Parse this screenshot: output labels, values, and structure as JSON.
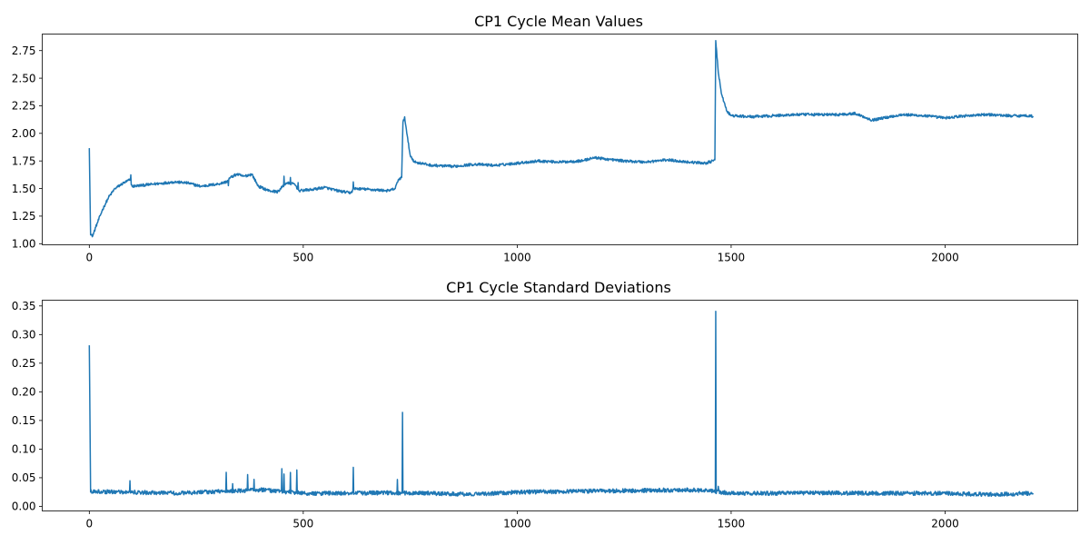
{
  "colors": {
    "line": "#1f77b4",
    "background": "#ffffff",
    "axes": "#000000"
  },
  "chart_data": [
    {
      "type": "line",
      "title": "CP1 Cycle Mean Values",
      "xlabel": "",
      "ylabel": "",
      "xlim": [
        -110,
        2310
      ],
      "ylim": [
        0.99,
        2.9
      ],
      "x_ticks": [
        0,
        500,
        1000,
        1500,
        2000
      ],
      "x_tick_labels": [
        "0",
        "500",
        "1000",
        "1500",
        "2000"
      ],
      "y_ticks": [
        1.0,
        1.25,
        1.5,
        1.75,
        2.0,
        2.25,
        2.5,
        2.75
      ],
      "y_tick_labels": [
        "1.00",
        "1.25",
        "1.50",
        "1.75",
        "2.00",
        "2.25",
        "2.50",
        "2.75"
      ],
      "grid": false,
      "x_domain": [
        0,
        2205
      ],
      "series": [
        {
          "anchors": [
            [
              0,
              1.86
            ],
            [
              3,
              1.08
            ],
            [
              8,
              1.07
            ],
            [
              15,
              1.15
            ],
            [
              30,
              1.3
            ],
            [
              45,
              1.42
            ],
            [
              60,
              1.5
            ],
            [
              80,
              1.55
            ],
            [
              95,
              1.58
            ],
            [
              100,
              1.52
            ],
            [
              150,
              1.54
            ],
            [
              200,
              1.56
            ],
            [
              230,
              1.55
            ],
            [
              260,
              1.52
            ],
            [
              300,
              1.54
            ],
            [
              320,
              1.56
            ],
            [
              330,
              1.6
            ],
            [
              345,
              1.63
            ],
            [
              360,
              1.61
            ],
            [
              380,
              1.63
            ],
            [
              395,
              1.52
            ],
            [
              420,
              1.48
            ],
            [
              440,
              1.47
            ],
            [
              460,
              1.55
            ],
            [
              480,
              1.54
            ],
            [
              490,
              1.48
            ],
            [
              520,
              1.49
            ],
            [
              550,
              1.51
            ],
            [
              580,
              1.48
            ],
            [
              610,
              1.46
            ],
            [
              620,
              1.5
            ],
            [
              660,
              1.49
            ],
            [
              700,
              1.48
            ],
            [
              715,
              1.5
            ],
            [
              722,
              1.58
            ],
            [
              730,
              1.6
            ],
            [
              733,
              2.1
            ],
            [
              737,
              2.15
            ],
            [
              742,
              2.0
            ],
            [
              750,
              1.8
            ],
            [
              760,
              1.74
            ],
            [
              800,
              1.71
            ],
            [
              850,
              1.7
            ],
            [
              900,
              1.72
            ],
            [
              950,
              1.71
            ],
            [
              1000,
              1.73
            ],
            [
              1050,
              1.75
            ],
            [
              1100,
              1.74
            ],
            [
              1150,
              1.75
            ],
            [
              1180,
              1.78
            ],
            [
              1200,
              1.77
            ],
            [
              1250,
              1.75
            ],
            [
              1300,
              1.74
            ],
            [
              1350,
              1.76
            ],
            [
              1400,
              1.74
            ],
            [
              1440,
              1.73
            ],
            [
              1458,
              1.75
            ],
            [
              1462,
              1.76
            ],
            [
              1464,
              2.84
            ],
            [
              1470,
              2.55
            ],
            [
              1478,
              2.35
            ],
            [
              1490,
              2.2
            ],
            [
              1500,
              2.16
            ],
            [
              1550,
              2.15
            ],
            [
              1600,
              2.16
            ],
            [
              1650,
              2.17
            ],
            [
              1700,
              2.17
            ],
            [
              1750,
              2.17
            ],
            [
              1790,
              2.18
            ],
            [
              1830,
              2.12
            ],
            [
              1870,
              2.15
            ],
            [
              1900,
              2.17
            ],
            [
              1950,
              2.16
            ],
            [
              2000,
              2.14
            ],
            [
              2050,
              2.16
            ],
            [
              2100,
              2.17
            ],
            [
              2150,
              2.16
            ],
            [
              2200,
              2.16
            ],
            [
              2205,
              2.15
            ]
          ],
          "noise_amplitude": 0.012,
          "spikes": [
            [
              97,
              0.06
            ],
            [
              325,
              -0.06
            ],
            [
              455,
              0.08
            ],
            [
              470,
              0.06
            ],
            [
              488,
              0.07
            ],
            [
              617,
              0.08
            ],
            [
              1190,
              0.02
            ]
          ]
        }
      ]
    },
    {
      "type": "line",
      "title": "CP1 Cycle Standard Deviations",
      "xlabel": "",
      "ylabel": "",
      "xlim": [
        -110,
        2310
      ],
      "ylim": [
        -0.008,
        0.36
      ],
      "x_ticks": [
        0,
        500,
        1000,
        1500,
        2000
      ],
      "x_tick_labels": [
        "0",
        "500",
        "1000",
        "1500",
        "2000"
      ],
      "y_ticks": [
        0.0,
        0.05,
        0.1,
        0.15,
        0.2,
        0.25,
        0.3,
        0.35
      ],
      "y_tick_labels": [
        "0.00",
        "0.05",
        "0.10",
        "0.15",
        "0.20",
        "0.25",
        "0.30",
        "0.35"
      ],
      "grid": false,
      "x_domain": [
        0,
        2205
      ],
      "series": [
        {
          "anchors": [
            [
              0,
              0.28
            ],
            [
              3,
              0.025
            ],
            [
              100,
              0.024
            ],
            [
              200,
              0.022
            ],
            [
              300,
              0.025
            ],
            [
              400,
              0.028
            ],
            [
              500,
              0.022
            ],
            [
              600,
              0.022
            ],
            [
              700,
              0.023
            ],
            [
              800,
              0.022
            ],
            [
              900,
              0.02
            ],
            [
              1000,
              0.024
            ],
            [
              1100,
              0.025
            ],
            [
              1200,
              0.026
            ],
            [
              1300,
              0.027
            ],
            [
              1400,
              0.028
            ],
            [
              1450,
              0.026
            ],
            [
              1500,
              0.022
            ],
            [
              1600,
              0.022
            ],
            [
              1700,
              0.023
            ],
            [
              1800,
              0.022
            ],
            [
              1900,
              0.022
            ],
            [
              2000,
              0.022
            ],
            [
              2100,
              0.02
            ],
            [
              2205,
              0.022
            ]
          ],
          "noise_amplitude": 0.008,
          "spikes": [
            [
              95,
              0.02
            ],
            [
              320,
              0.035
            ],
            [
              335,
              0.015
            ],
            [
              370,
              0.028
            ],
            [
              385,
              0.022
            ],
            [
              450,
              0.04
            ],
            [
              455,
              0.03
            ],
            [
              470,
              0.035
            ],
            [
              485,
              0.042
            ],
            [
              617,
              0.045
            ],
            [
              720,
              0.02
            ],
            [
              732,
              0.14
            ],
            [
              1464,
              0.318
            ],
            [
              1470,
              0.012
            ]
          ]
        }
      ]
    }
  ]
}
